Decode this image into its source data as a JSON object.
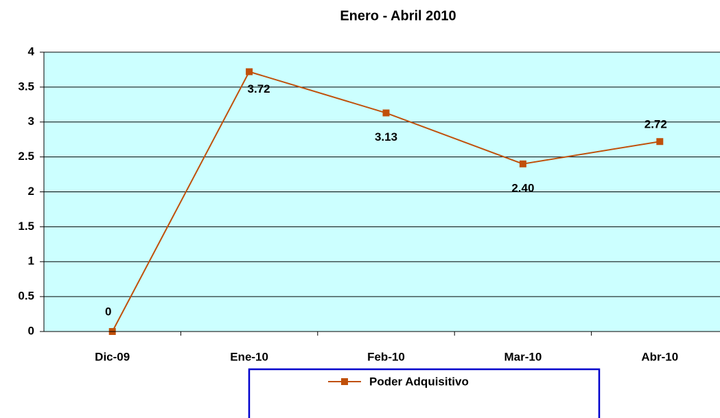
{
  "chart_data": {
    "type": "line",
    "title": "Enero - Abril 2010",
    "categories": [
      "Dic-09",
      "Ene-10",
      "Feb-10",
      "Mar-10",
      "Abr-10"
    ],
    "series": [
      {
        "name": "Poder Adquisitivo",
        "color": "#c0500a",
        "values": [
          0,
          3.72,
          3.13,
          2.4,
          2.72
        ],
        "value_labels": [
          "0",
          "3.72",
          "3.13",
          "2.40",
          "2.72"
        ]
      }
    ],
    "ylim": [
      0,
      4
    ],
    "yticks": [
      0,
      0.5,
      1,
      1.5,
      2,
      2.5,
      3,
      3.5,
      4
    ],
    "grid": true,
    "legend": "bottom"
  }
}
